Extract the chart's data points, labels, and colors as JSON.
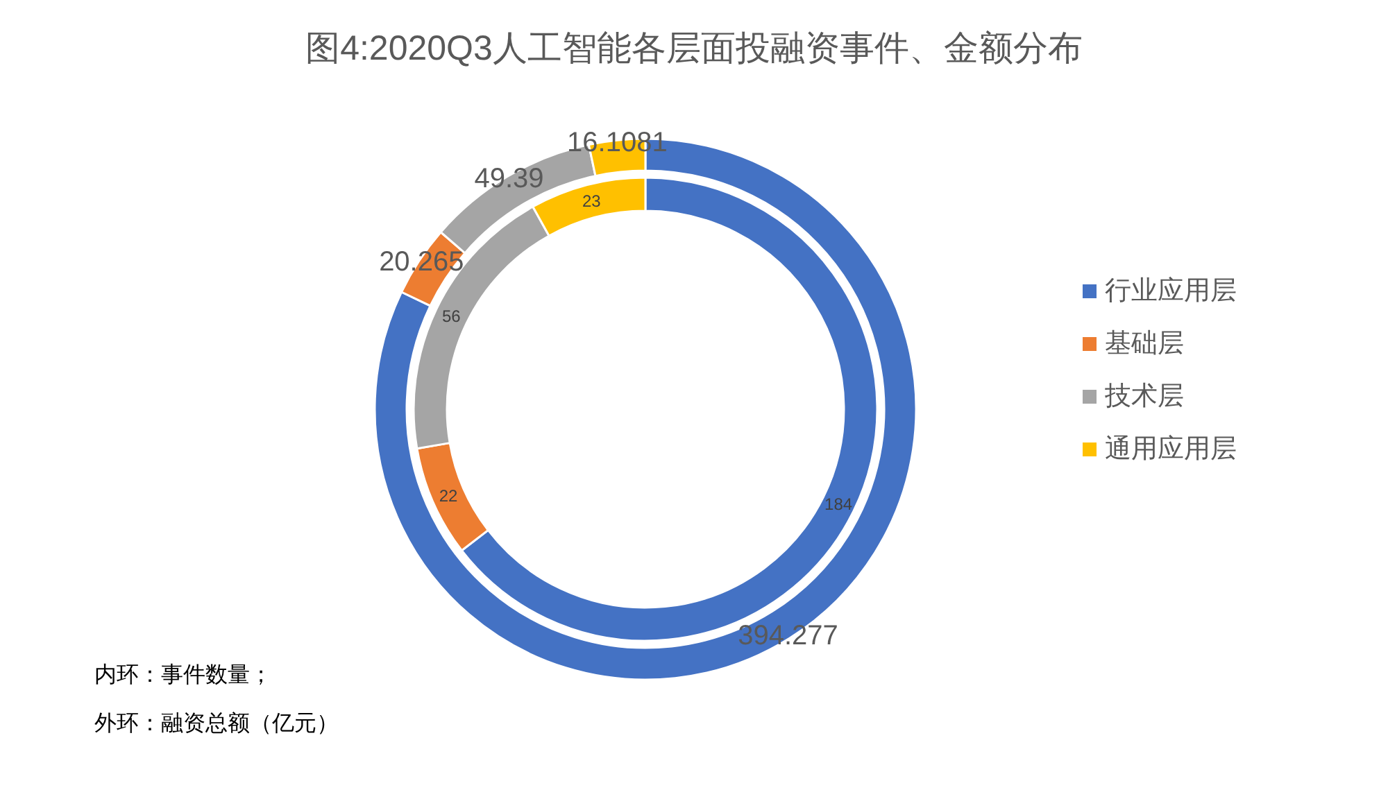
{
  "chart_data": {
    "type": "donut",
    "title": "图4:2020Q3人工智能各层面投融资事件、金额分布",
    "categories": [
      "行业应用层",
      "基础层",
      "技术层",
      "通用应用层"
    ],
    "colors": [
      "#4472c4",
      "#ed7d31",
      "#a5a5a5",
      "#ffc000"
    ],
    "series": [
      {
        "values": [
          184,
          22,
          56,
          23
        ]
      },
      {
        "values": [
          394.277,
          20.265,
          49.39,
          16.1081
        ]
      }
    ],
    "data_labels": true,
    "legend": "right",
    "annotations": [
      "内环：事件数量；",
      "外环：融资总额（亿元）"
    ]
  }
}
